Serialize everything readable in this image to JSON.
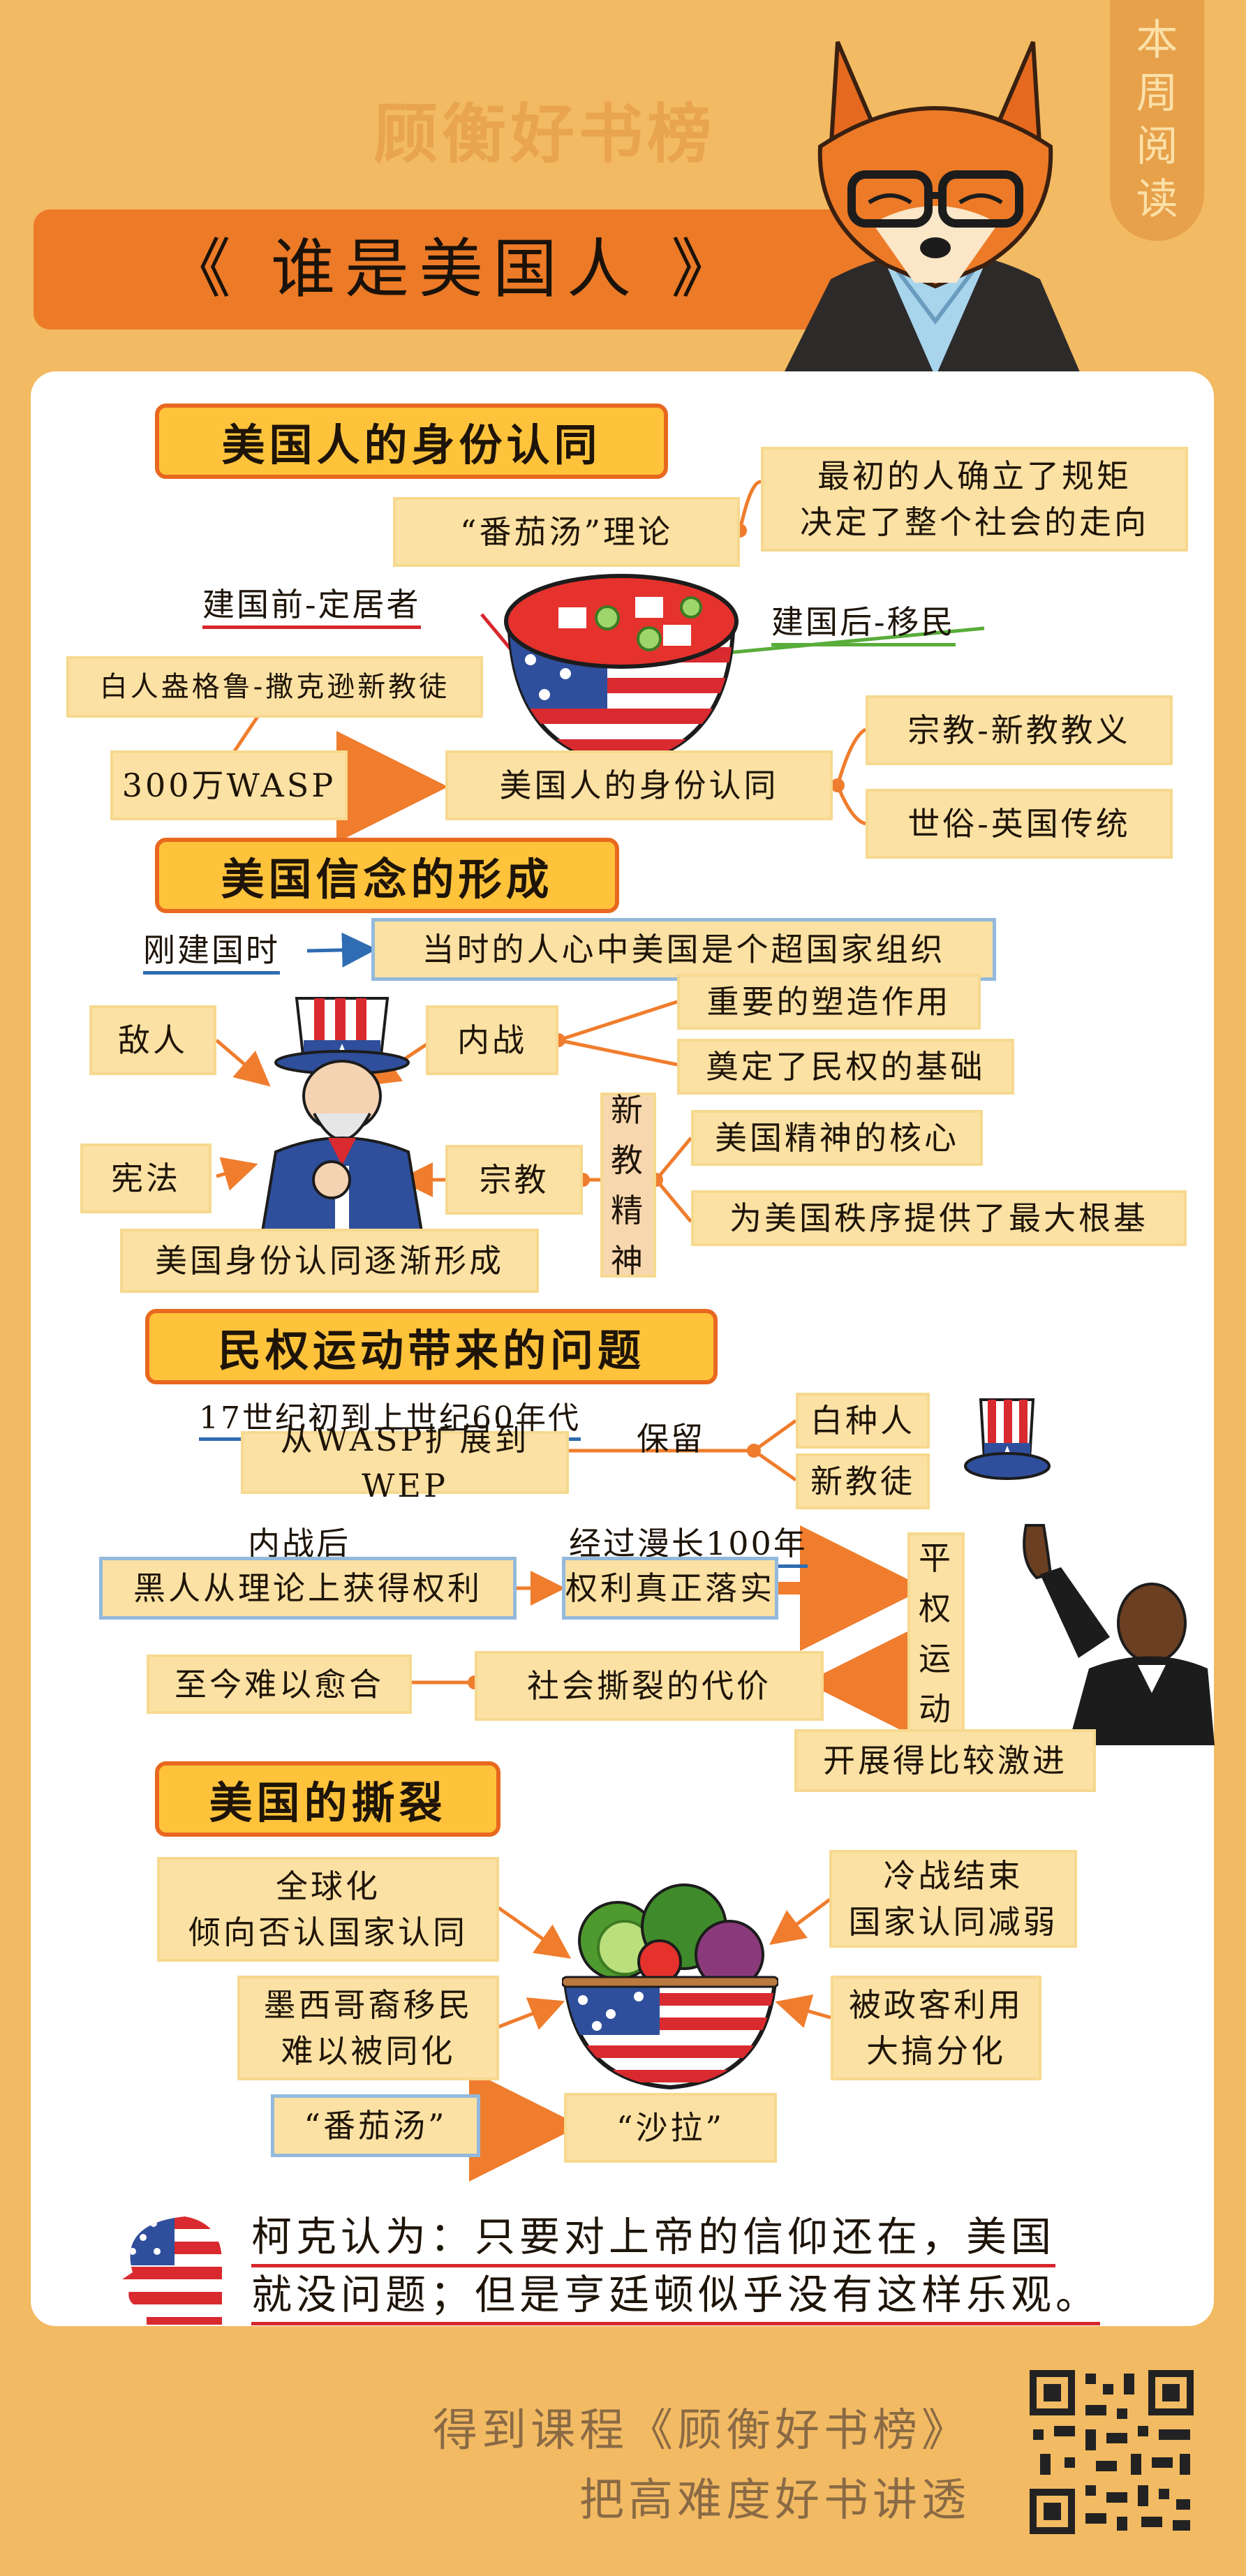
{
  "header": {
    "brand": "顾衡好书榜",
    "weekly_tab": "本周阅读",
    "title": "《 谁是美国人 》"
  },
  "section1": {
    "heading": "美国人的身份认同",
    "tomato_theory": "“番茄汤”理论",
    "tomato_desc": [
      "最初的人确立了规矩",
      "决定了整个社会的走向"
    ],
    "before": "建国前-定居者",
    "after": "建国后-移民",
    "wasp_desc": "白人盎格鲁-撒克逊新教徒",
    "wasp": "300万WASP",
    "identity": "美国人的身份认同",
    "religion": "宗教-新教教义",
    "secular": "世俗-英国传统"
  },
  "section2": {
    "heading": "美国信念的形成",
    "just_founded": "刚建国时",
    "super_state": "当时的人心中美国是个超国家组织",
    "enemy": "敌人",
    "civil_war": "内战",
    "shaping": "重要的塑造作用",
    "civil_rights_base": "奠定了民权的基础",
    "constitution": "宪法",
    "religion": "宗教",
    "new_spirit": [
      "新",
      "教",
      "精",
      "神"
    ],
    "core": "美国精神的核心",
    "foundation": "为美国秩序提供了最大根基",
    "identity_formed": "美国身份认同逐渐形成"
  },
  "section3": {
    "heading": "民权运动带来的问题",
    "period": "17世纪初到上世纪60年代",
    "wasp_to_wep": "从WASP扩展到WEP",
    "retain": "保留",
    "white": "白种人",
    "protestant": "新教徒",
    "after_war": "内战后",
    "black_rights": "黑人从理论上获得权利",
    "century": "经过漫长100年",
    "rights_real": "权利真正落实",
    "equal_rights": [
      "平",
      "权",
      "运",
      "动"
    ],
    "radical": "开展得比较激进",
    "cost": "社会撕裂的代价",
    "unhealed": "至今难以愈合"
  },
  "section4": {
    "heading": "美国的撕裂",
    "globalization": [
      "全球化",
      "倾向否认国家认同"
    ],
    "cold_war": [
      "冷战结束",
      "国家认同减弱"
    ],
    "mexican": [
      "墨西哥裔移民",
      "难以被同化"
    ],
    "politicians": [
      "被政客利用",
      "大搞分化"
    ],
    "soup": "“番茄汤”",
    "salad": "“沙拉”"
  },
  "closing": {
    "line1": "柯克认为：只要对上帝的信仰还在，美国",
    "line2": "就没问题；但是亨廷顿似乎没有这样乐观。"
  },
  "footer": {
    "line1": "得到课程《顾衡好书榜》",
    "line2": "把高难度好书讲透"
  },
  "colors": {
    "background": "#f2ba62",
    "title_banner": "#ec7a27",
    "section_fill": "#ffc33b",
    "section_border": "#e8681f",
    "box_fill": "#fbe1a3",
    "connector": "#ef7d2d",
    "blue_outline": "#93b9dc"
  },
  "icons": [
    "fox-mascot-icon",
    "tomato-soup-bowl-icon",
    "uncle-sam-icon",
    "uncle-sam-hat-icon",
    "speaker-silhouette-icon",
    "salad-bowl-icon",
    "flag-head-icon",
    "qr-code-icon"
  ]
}
